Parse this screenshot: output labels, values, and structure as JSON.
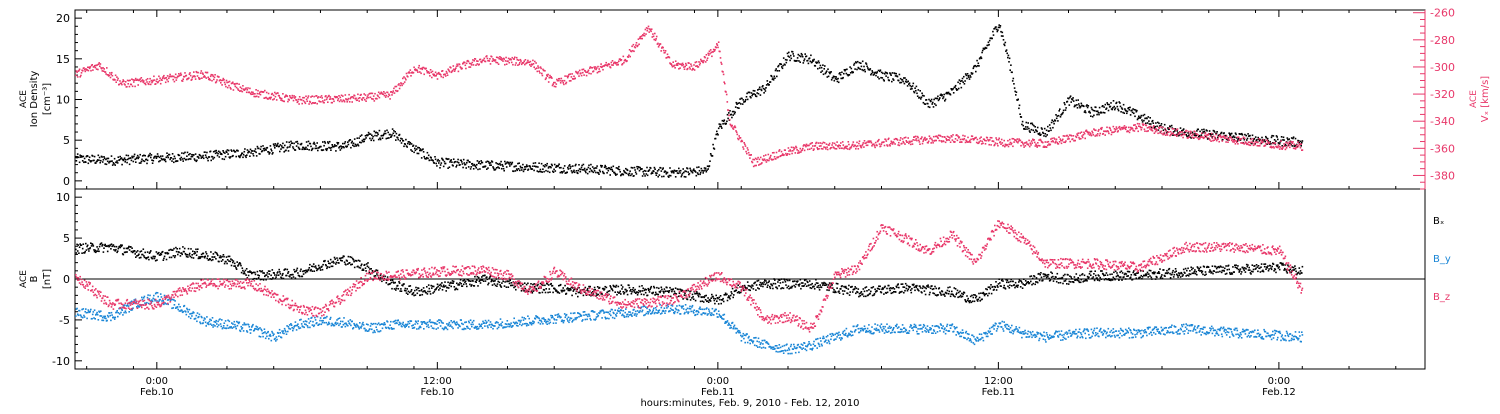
{
  "colors": {
    "black_series": "#000000",
    "red_series": "#e8386a",
    "blue_series": "#1a86d6",
    "axis": "#000000"
  },
  "x_axis": {
    "range_hours": [
      -3.5,
      54.25
    ],
    "ticks": [
      {
        "hour": 0,
        "time": "0:00",
        "date": "Feb.10"
      },
      {
        "hour": 12,
        "time": "12:00",
        "date": "Feb.10"
      },
      {
        "hour": 24,
        "time": "0:00",
        "date": "Feb.11"
      },
      {
        "hour": 36,
        "time": "12:00",
        "date": "Feb.11"
      },
      {
        "hour": 48,
        "time": "0:00",
        "date": "Feb.12"
      }
    ],
    "label": "hours:minutes, Feb.  9, 2010 - Feb. 12, 2010"
  },
  "chart_data": [
    {
      "type": "scatter",
      "panel": "top",
      "ylabel_left": {
        "line1": "ACE",
        "line2": "Ion Density",
        "line3": "[cm⁻³]"
      },
      "ylabel_right": {
        "line1": "ACE",
        "line2": "Vₓ [km/s]"
      },
      "ylim_left": [
        -1,
        21
      ],
      "yticks_left": [
        0,
        5,
        10,
        15,
        20
      ],
      "ylim_right": [
        -390,
        -258
      ],
      "yticks_right": [
        -380,
        -360,
        -340,
        -320,
        -300,
        -280,
        -260
      ],
      "series": [
        {
          "color": "#000000",
          "axis": "left",
          "points": [
            [
              -3.5,
              2.8
            ],
            [
              -2,
              2.6
            ],
            [
              0,
              2.9
            ],
            [
              2,
              3.1
            ],
            [
              4,
              3.6
            ],
            [
              6,
              4.5
            ],
            [
              8,
              4.3
            ],
            [
              9,
              5.5
            ],
            [
              10,
              6.0
            ],
            [
              11,
              4.0
            ],
            [
              12,
              2.3
            ],
            [
              14,
              2.0
            ],
            [
              16,
              1.8
            ],
            [
              18,
              1.6
            ],
            [
              20,
              1.3
            ],
            [
              22,
              1.1
            ],
            [
              23.5,
              1.3
            ],
            [
              24,
              6.5
            ],
            [
              25,
              10.0
            ],
            [
              26,
              11.5
            ],
            [
              27,
              15.5
            ],
            [
              28,
              15.0
            ],
            [
              29,
              12.5
            ],
            [
              30,
              14.5
            ],
            [
              31,
              13.0
            ],
            [
              32,
              12.5
            ],
            [
              33,
              9.5
            ],
            [
              34,
              11.0
            ],
            [
              35,
              14.0
            ],
            [
              36,
              19.5
            ],
            [
              36.5,
              14.0
            ],
            [
              37,
              7.0
            ],
            [
              38,
              6.0
            ],
            [
              39,
              10.0
            ],
            [
              40,
              8.5
            ],
            [
              41,
              9.5
            ],
            [
              42,
              8.0
            ],
            [
              43,
              6.5
            ],
            [
              44,
              6.0
            ],
            [
              45,
              5.8
            ],
            [
              46,
              5.5
            ],
            [
              47,
              5.2
            ],
            [
              48,
              5.0
            ],
            [
              49,
              4.8
            ]
          ]
        },
        {
          "color": "#e8386a",
          "axis": "right",
          "points": [
            [
              -3.5,
              -305
            ],
            [
              -2.5,
              -298
            ],
            [
              -1.5,
              -312
            ],
            [
              0,
              -309
            ],
            [
              2,
              -305
            ],
            [
              3,
              -312
            ],
            [
              4,
              -318
            ],
            [
              6,
              -324
            ],
            [
              8,
              -323
            ],
            [
              9,
              -322
            ],
            [
              10,
              -320
            ],
            [
              11,
              -300
            ],
            [
              12,
              -306
            ],
            [
              13,
              -299
            ],
            [
              14,
              -294
            ],
            [
              16,
              -296
            ],
            [
              17,
              -312
            ],
            [
              18,
              -305
            ],
            [
              19,
              -300
            ],
            [
              20,
              -294
            ],
            [
              21,
              -270
            ],
            [
              22,
              -298
            ],
            [
              23,
              -299
            ],
            [
              23.5,
              -292
            ],
            [
              24,
              -284
            ],
            [
              24.5,
              -340
            ],
            [
              25.5,
              -370
            ],
            [
              26.5,
              -364
            ],
            [
              28,
              -358
            ],
            [
              30,
              -357
            ],
            [
              32,
              -354
            ],
            [
              34,
              -352
            ],
            [
              36,
              -355
            ],
            [
              38,
              -356
            ],
            [
              40,
              -348
            ],
            [
              42,
              -344
            ],
            [
              44,
              -349
            ],
            [
              46,
              -353
            ],
            [
              48,
              -357
            ],
            [
              49,
              -358
            ]
          ]
        }
      ]
    },
    {
      "type": "scatter",
      "panel": "bottom",
      "ylabel_left": {
        "line1": "ACE",
        "line2": "B",
        "line3": "[nT]"
      },
      "ylim": [
        -11,
        11
      ],
      "yticks": [
        -10,
        -5,
        0,
        5,
        10
      ],
      "legend_position": "right",
      "series": [
        {
          "name": "Bₓ",
          "color": "#000000",
          "points": [
            [
              -3.5,
              3.8
            ],
            [
              -2,
              4.0
            ],
            [
              0,
              2.8
            ],
            [
              1,
              3.5
            ],
            [
              3,
              2.5
            ],
            [
              4,
              0.5
            ],
            [
              6,
              0.8
            ],
            [
              7,
              1.8
            ],
            [
              8,
              2.5
            ],
            [
              9,
              1.5
            ],
            [
              10,
              -0.5
            ],
            [
              11,
              -1.5
            ],
            [
              12,
              -1.0
            ],
            [
              14,
              0.0
            ],
            [
              15,
              -0.5
            ],
            [
              16,
              -1.0
            ],
            [
              17,
              -1.0
            ],
            [
              18,
              -1.5
            ],
            [
              20,
              -1.2
            ],
            [
              22,
              -1.5
            ],
            [
              24,
              -2.5
            ],
            [
              25,
              -1.0
            ],
            [
              26,
              -0.5
            ],
            [
              28,
              -0.5
            ],
            [
              30,
              -1.5
            ],
            [
              32,
              -1.0
            ],
            [
              34,
              -1.5
            ],
            [
              35,
              -2.5
            ],
            [
              36,
              -0.5
            ],
            [
              37,
              -0.5
            ],
            [
              38,
              0.5
            ],
            [
              39,
              0.0
            ],
            [
              40,
              0.5
            ],
            [
              42,
              0.5
            ],
            [
              44,
              1.0
            ],
            [
              46,
              1.2
            ],
            [
              48,
              1.5
            ],
            [
              49,
              1.0
            ]
          ]
        },
        {
          "name": "B_y",
          "color": "#1a86d6",
          "points": [
            [
              -3.5,
              -4.0
            ],
            [
              -2,
              -4.5
            ],
            [
              -1,
              -3.0
            ],
            [
              0,
              -2.0
            ],
            [
              2,
              -5.0
            ],
            [
              4,
              -6.0
            ],
            [
              5,
              -7.0
            ],
            [
              6,
              -5.5
            ],
            [
              7,
              -5.0
            ],
            [
              8,
              -5.2
            ],
            [
              9,
              -6.0
            ],
            [
              10,
              -5.5
            ],
            [
              12,
              -5.5
            ],
            [
              14,
              -5.5
            ],
            [
              16,
              -5.0
            ],
            [
              18,
              -4.5
            ],
            [
              20,
              -4.0
            ],
            [
              22,
              -3.5
            ],
            [
              24,
              -4.0
            ],
            [
              25,
              -7.0
            ],
            [
              26,
              -8.0
            ],
            [
              27,
              -8.5
            ],
            [
              28,
              -8.0
            ],
            [
              30,
              -6.0
            ],
            [
              32,
              -6.0
            ],
            [
              34,
              -6.0
            ],
            [
              35,
              -7.5
            ],
            [
              36,
              -5.5
            ],
            [
              37,
              -6.5
            ],
            [
              38,
              -7.0
            ],
            [
              40,
              -6.5
            ],
            [
              42,
              -6.5
            ],
            [
              44,
              -6.0
            ],
            [
              46,
              -6.5
            ],
            [
              48,
              -6.8
            ],
            [
              49,
              -7.0
            ]
          ]
        },
        {
          "name": "B_z",
          "color": "#e8386a",
          "points": [
            [
              -3.5,
              0.5
            ],
            [
              -2,
              -3.0
            ],
            [
              -1,
              -3.0
            ],
            [
              0,
              -3.0
            ],
            [
              1,
              -1.5
            ],
            [
              2,
              -0.5
            ],
            [
              4,
              -0.5
            ],
            [
              5,
              -2.0
            ],
            [
              6,
              -3.5
            ],
            [
              7,
              -4.0
            ],
            [
              8,
              -2.0
            ],
            [
              9,
              0.5
            ],
            [
              10,
              0.5
            ],
            [
              12,
              1.0
            ],
            [
              14,
              1.2
            ],
            [
              15,
              0.5
            ],
            [
              16,
              -1.5
            ],
            [
              17,
              1.0
            ],
            [
              18,
              -1.0
            ],
            [
              20,
              -3.0
            ],
            [
              22,
              -2.5
            ],
            [
              24,
              0.5
            ],
            [
              25,
              -1.0
            ],
            [
              26,
              -5.0
            ],
            [
              27,
              -4.5
            ],
            [
              28,
              -6.0
            ],
            [
              29,
              0.5
            ],
            [
              30,
              1.5
            ],
            [
              31,
              6.5
            ],
            [
              32,
              5.0
            ],
            [
              33,
              3.5
            ],
            [
              34,
              5.5
            ],
            [
              35,
              2.0
            ],
            [
              36,
              7.0
            ],
            [
              37,
              5.0
            ],
            [
              38,
              2.0
            ],
            [
              40,
              2.0
            ],
            [
              42,
              1.5
            ],
            [
              44,
              4.0
            ],
            [
              46,
              4.0
            ],
            [
              48,
              3.5
            ],
            [
              49,
              -1.5
            ]
          ]
        }
      ]
    }
  ]
}
